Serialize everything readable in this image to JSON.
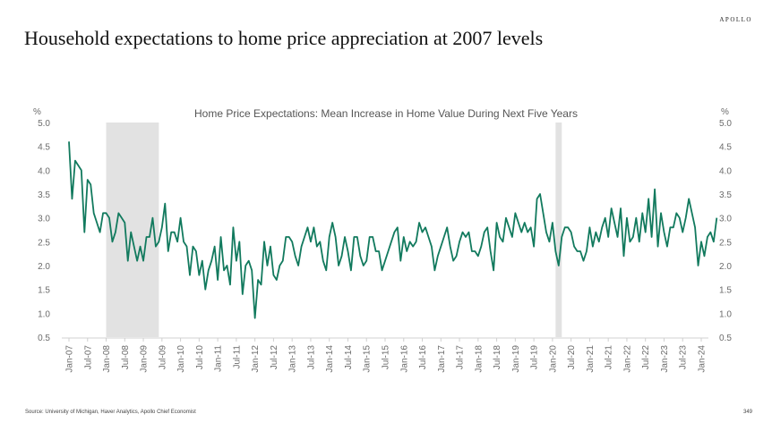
{
  "brand": "APOLLO",
  "title": "Household expectations to home price appreciation at 2007 levels",
  "source": "Source: University of Michigan, Haver Analytics, Apollo Chief Economist",
  "page_number": "349",
  "colors": {
    "line": "#127a5e",
    "recession": "#e2e2e2",
    "axis": "#d0d0d0"
  },
  "chart_data": {
    "type": "line",
    "title": "Home Price Expectations: Mean Increase in Home Value During Next Five Years",
    "ylabel": "%",
    "ylabel_right": "%",
    "ylim": [
      0.5,
      5.0
    ],
    "yticks": [
      "5.0",
      "4.5",
      "4.0",
      "3.5",
      "3.0",
      "2.5",
      "2.0",
      "1.5",
      "1.0",
      "0.5"
    ],
    "ytick_values": [
      5.0,
      4.5,
      4.0,
      3.5,
      3.0,
      2.5,
      2.0,
      1.5,
      1.0,
      0.5
    ],
    "xlim": [
      "2007-01",
      "2024-01"
    ],
    "xticks": [
      "Jan-07",
      "Jul-07",
      "Jan-08",
      "Jul-08",
      "Jan-09",
      "Jul-09",
      "Jan-10",
      "Jul-10",
      "Jan-11",
      "Jul-11",
      "Jan-12",
      "Jul-12",
      "Jan-13",
      "Jul-13",
      "Jan-14",
      "Jul-14",
      "Jan-15",
      "Jul-15",
      "Jan-16",
      "Jul-16",
      "Jan-17",
      "Jul-17",
      "Jan-18",
      "Jul-18",
      "Jan-19",
      "Jul-19",
      "Jan-20",
      "Jul-20",
      "Jan-21",
      "Jul-21",
      "Jan-22",
      "Jul-22",
      "Jan-23",
      "Jul-23",
      "Jan-24"
    ],
    "recessions": [
      {
        "start_month_index": 12,
        "end_month_index": 29
      },
      {
        "start_month_index": 157,
        "end_month_index": 159
      }
    ],
    "series": [
      {
        "name": "Mean increase in home value during next five years",
        "start": "2007-01",
        "frequency": "monthly",
        "values": [
          4.6,
          3.4,
          4.2,
          4.1,
          4.0,
          2.7,
          3.8,
          3.7,
          3.1,
          2.9,
          2.7,
          3.1,
          3.1,
          3.0,
          2.5,
          2.7,
          3.1,
          3.0,
          2.9,
          2.1,
          2.7,
          2.4,
          2.1,
          2.4,
          2.1,
          2.6,
          2.6,
          3.0,
          2.4,
          2.5,
          2.8,
          3.3,
          2.3,
          2.7,
          2.7,
          2.5,
          3.0,
          2.5,
          2.4,
          1.8,
          2.4,
          2.3,
          1.8,
          2.1,
          1.5,
          1.9,
          2.1,
          2.4,
          1.7,
          2.6,
          1.9,
          2.0,
          1.6,
          2.8,
          2.1,
          2.5,
          1.4,
          2.0,
          2.1,
          1.9,
          0.9,
          1.7,
          1.6,
          2.5,
          2.0,
          2.4,
          1.8,
          1.7,
          2.0,
          2.1,
          2.6,
          2.6,
          2.5,
          2.2,
          2.0,
          2.4,
          2.6,
          2.8,
          2.5,
          2.8,
          2.4,
          2.5,
          2.1,
          1.9,
          2.6,
          2.9,
          2.6,
          2.0,
          2.2,
          2.6,
          2.3,
          1.9,
          2.6,
          2.6,
          2.2,
          2.0,
          2.1,
          2.6,
          2.6,
          2.3,
          2.3,
          1.9,
          2.1,
          2.3,
          2.5,
          2.7,
          2.8,
          2.1,
          2.6,
          2.3,
          2.5,
          2.4,
          2.5,
          2.9,
          2.7,
          2.8,
          2.6,
          2.4,
          1.9,
          2.2,
          2.4,
          2.6,
          2.8,
          2.4,
          2.1,
          2.2,
          2.5,
          2.7,
          2.6,
          2.7,
          2.3,
          2.3,
          2.2,
          2.4,
          2.7,
          2.8,
          2.3,
          1.9,
          2.9,
          2.6,
          2.5,
          3.0,
          2.8,
          2.6,
          3.1,
          2.9,
          2.7,
          2.9,
          2.7,
          2.8,
          2.4,
          3.4,
          3.5,
          3.1,
          2.7,
          2.5,
          2.9,
          2.3,
          2.0,
          2.6,
          2.8,
          2.8,
          2.7,
          2.4,
          2.3,
          2.3,
          2.1,
          2.3,
          2.8,
          2.4,
          2.7,
          2.5,
          2.8,
          3.0,
          2.6,
          3.2,
          2.9,
          2.6,
          3.2,
          2.2,
          3.0,
          2.5,
          2.6,
          3.0,
          2.5,
          3.1,
          2.7,
          3.4,
          2.6,
          3.6,
          2.4,
          3.1,
          2.7,
          2.4,
          2.8,
          2.8,
          3.1,
          3.0,
          2.7,
          3.0,
          3.4,
          3.1,
          2.8,
          2.0,
          2.5,
          2.2,
          2.6,
          2.7,
          2.5,
          3.0
        ]
      }
    ]
  }
}
